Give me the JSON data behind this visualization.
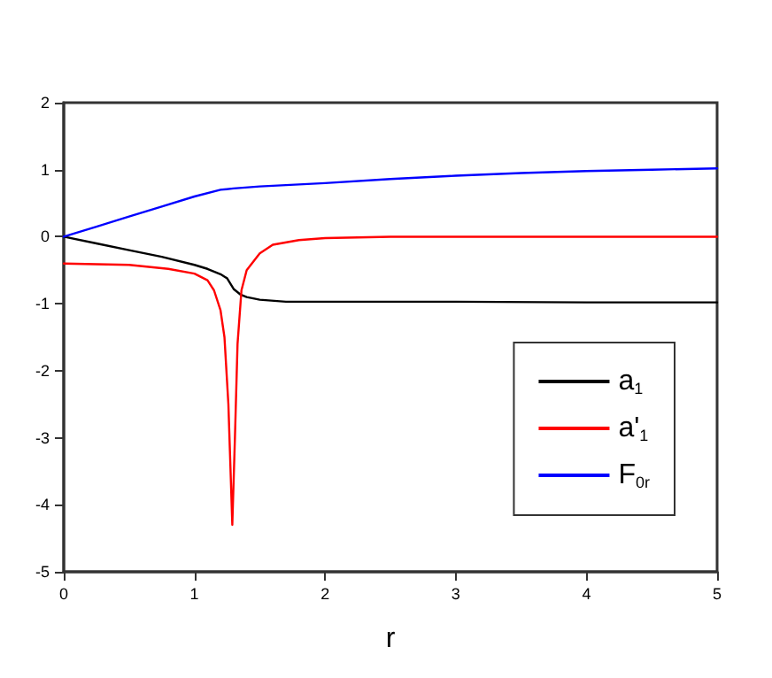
{
  "chart_data": {
    "type": "line",
    "xlabel": "r",
    "xlim": [
      0,
      5
    ],
    "xticks": [
      0,
      1,
      2,
      3,
      4,
      5
    ],
    "ylim": [
      -5,
      2
    ],
    "yticks": [
      -5,
      -4,
      -3,
      -2,
      -1,
      0,
      1,
      2
    ],
    "grid": false,
    "legend": "bottom right",
    "marker": "none",
    "line_style": "solid",
    "series": [
      {
        "name": "a$_{1}$",
        "color": "#000000",
        "x": [
          0,
          0.25,
          0.5,
          0.75,
          1,
          1.1,
          1.2,
          1.25,
          1.3,
          1.35,
          1.4,
          1.5,
          1.7,
          2,
          3,
          4,
          5
        ],
        "values": [
          0,
          -0.1,
          -0.2,
          -0.3,
          -0.42,
          -0.48,
          -0.56,
          -0.62,
          -0.78,
          -0.86,
          -0.9,
          -0.94,
          -0.97,
          -0.97,
          -0.97,
          -0.98,
          -0.98
        ]
      },
      {
        "name": "a'$_{1}$",
        "color": "#ff0000",
        "x": [
          0,
          0.5,
          0.8,
          1,
          1.1,
          1.15,
          1.2,
          1.23,
          1.26,
          1.29,
          1.31,
          1.33,
          1.36,
          1.4,
          1.5,
          1.6,
          1.8,
          2,
          2.5,
          3,
          5
        ],
        "values": [
          -0.4,
          -0.42,
          -0.48,
          -0.55,
          -0.65,
          -0.8,
          -1.1,
          -1.5,
          -2.5,
          -4.3,
          -3,
          -1.6,
          -0.8,
          -0.5,
          -0.25,
          -0.12,
          -0.05,
          -0.02,
          0,
          0,
          0
        ]
      },
      {
        "name": "F$_{0r}$",
        "color": "#0000ff",
        "x": [
          0,
          0.25,
          0.5,
          0.75,
          1,
          1.2,
          1.3,
          1.5,
          2,
          2.5,
          3,
          3.5,
          4,
          4.5,
          5
        ],
        "values": [
          0,
          0.15,
          0.3,
          0.45,
          0.6,
          0.7,
          0.72,
          0.75,
          0.8,
          0.86,
          0.91,
          0.95,
          0.98,
          1,
          1.02
        ]
      }
    ]
  }
}
